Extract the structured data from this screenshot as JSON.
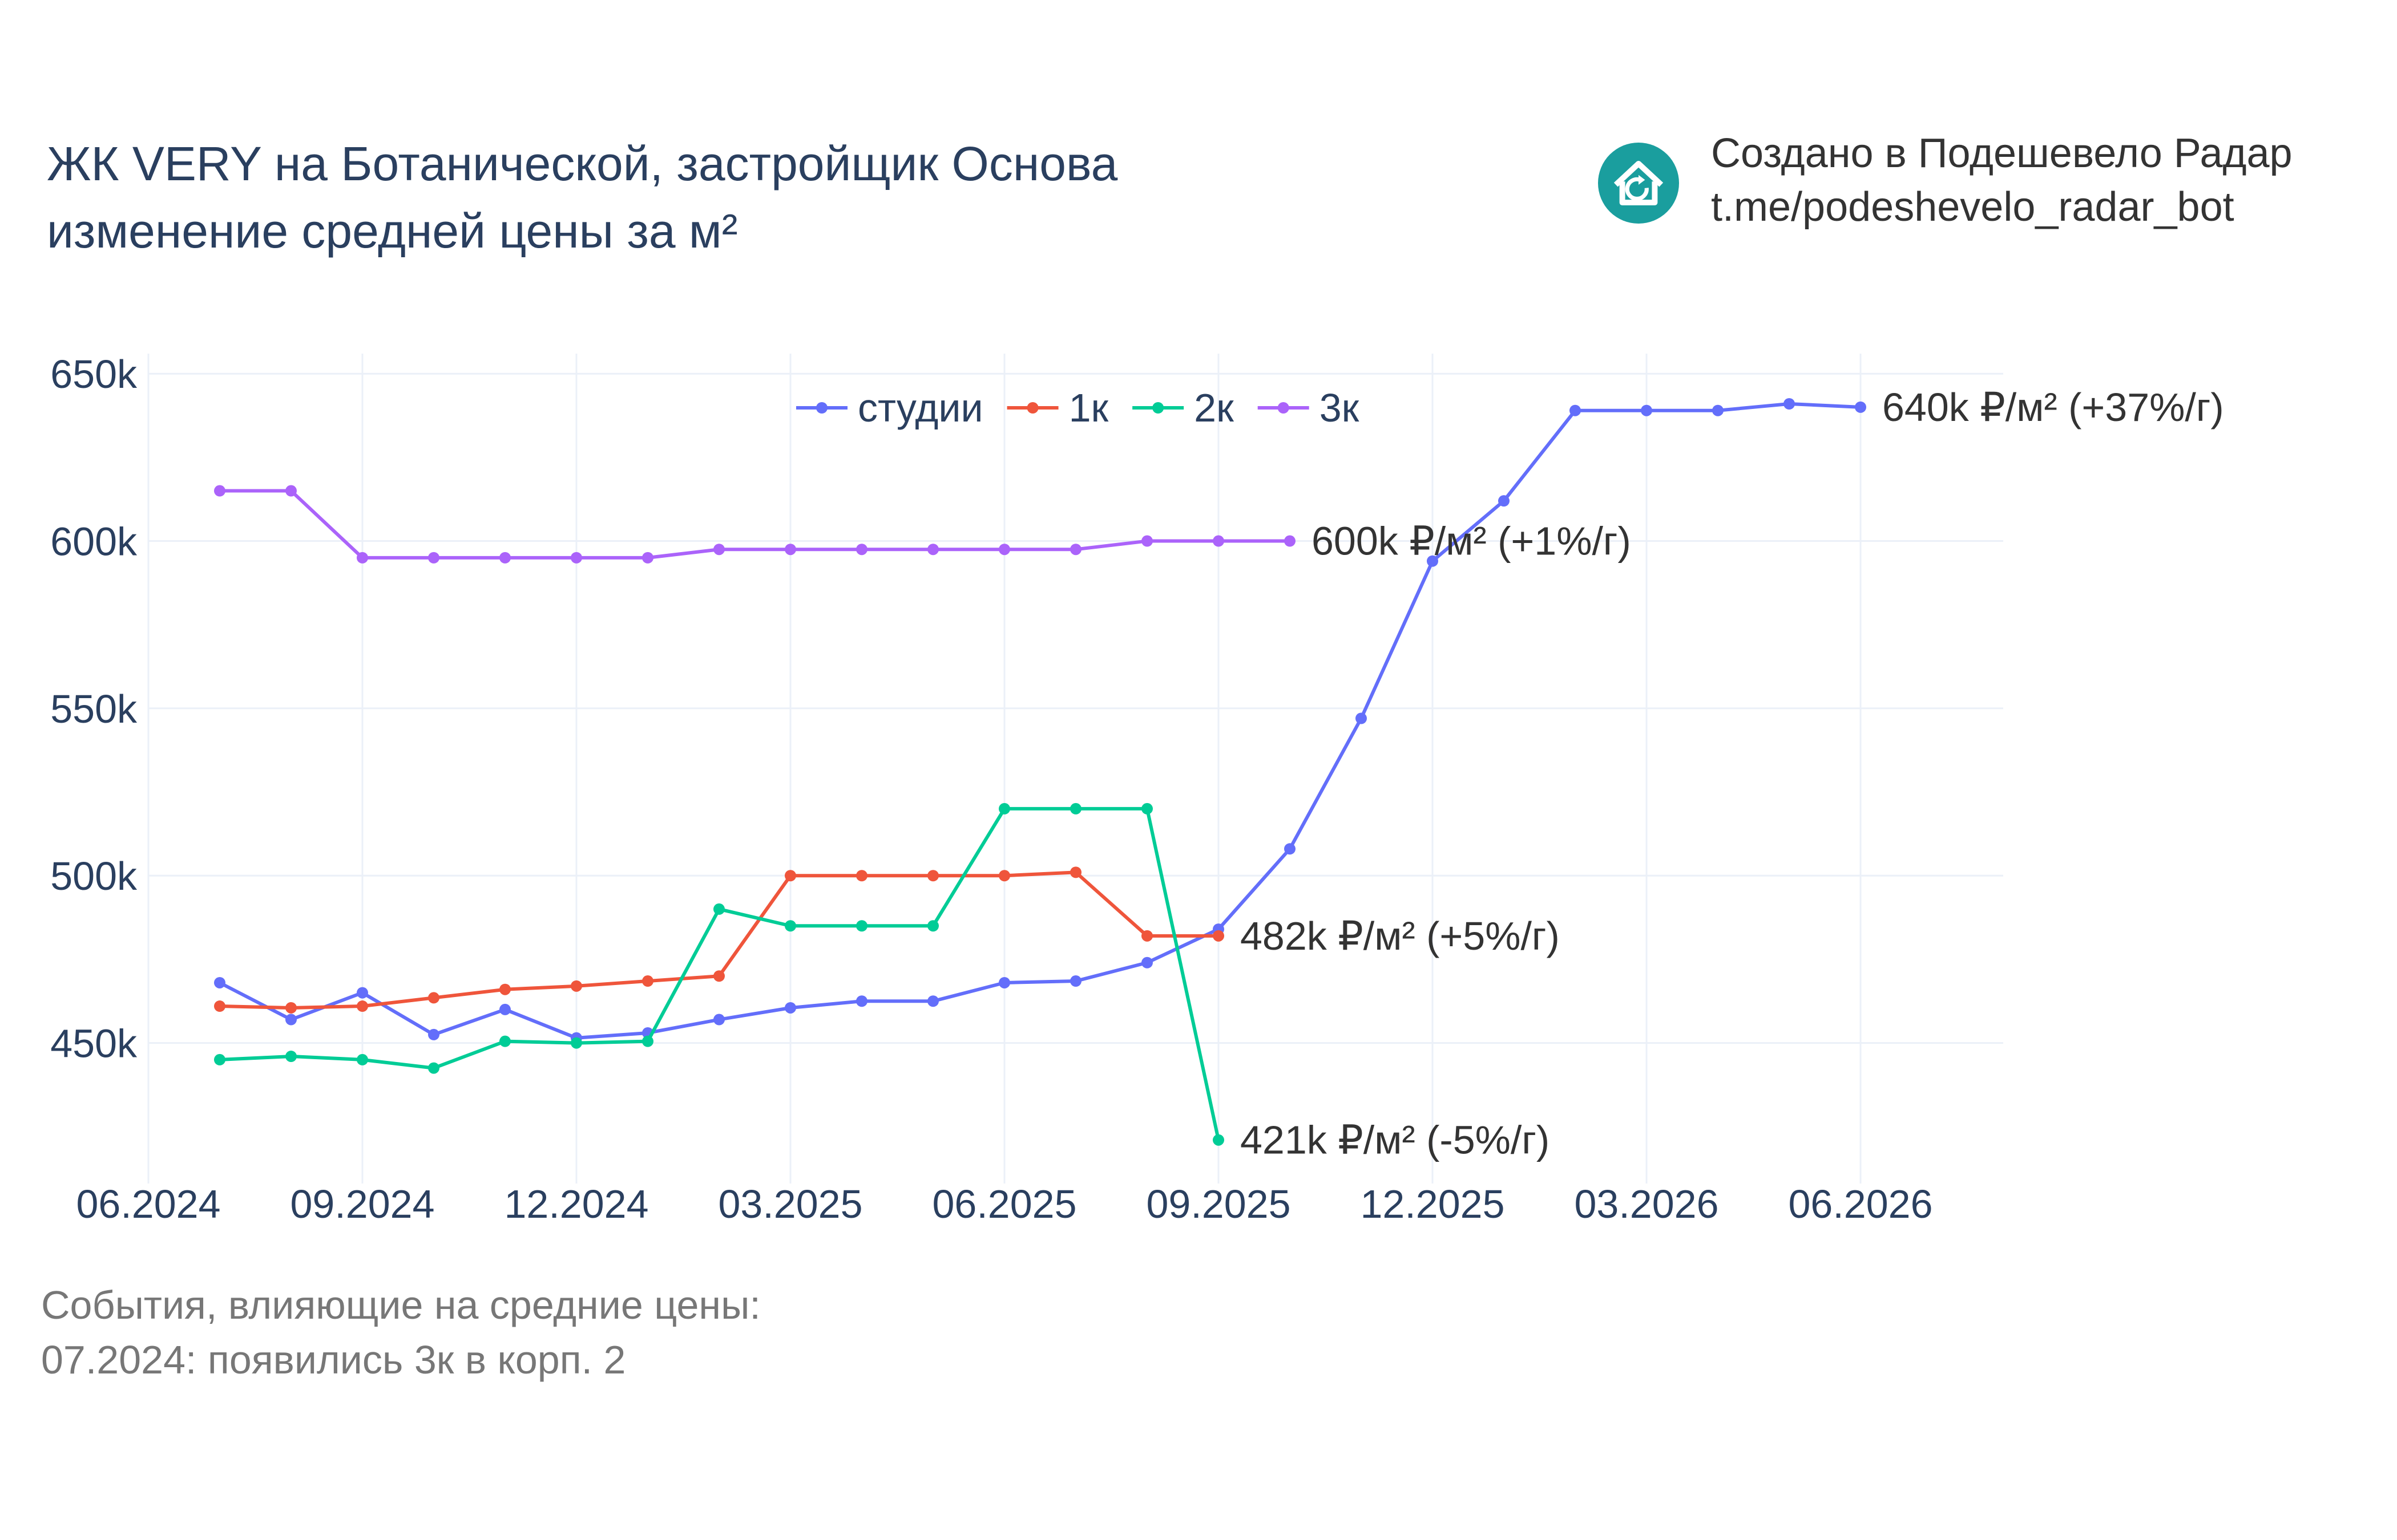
{
  "title": {
    "line1": "ЖК VERY на Ботанической, застройщик Основа",
    "line2": "изменение средней цены за м²"
  },
  "credit": {
    "line1": "Создано в Подешевело Радар",
    "line2": "t.me/podeshevelo_radar_bot",
    "logo_icon": "house-refresh-icon",
    "logo_color": "#1a9e9e"
  },
  "events": {
    "heading": "События, влияющие на средние цены:",
    "items": [
      "07.2024: появились 3к в корп. 2"
    ]
  },
  "chart_data": {
    "type": "line",
    "x_tick_labels": [
      "06.2024",
      "09.2024",
      "12.2024",
      "03.2025",
      "06.2025",
      "09.2025",
      "12.2025",
      "03.2026",
      "06.2026"
    ],
    "y_tick_labels": [
      "450k",
      "500k",
      "550k",
      "600k",
      "650k"
    ],
    "y_ticks": [
      450000,
      500000,
      550000,
      600000,
      650000
    ],
    "x_range": [
      "2024-06",
      "2026-08"
    ],
    "ylim": [
      408000,
      656000
    ],
    "grid": true,
    "legend_position": "top-center",
    "series": [
      {
        "name": "студии",
        "color": "#636efa",
        "points": [
          [
            "2024-07",
            468000
          ],
          [
            "2024-08",
            457000
          ],
          [
            "2024-09",
            465000
          ],
          [
            "2024-10",
            452500
          ],
          [
            "2024-11",
            460000
          ],
          [
            "2024-12",
            451500
          ],
          [
            "2025-01",
            453000
          ],
          [
            "2025-02",
            457000
          ],
          [
            "2025-03",
            460500
          ],
          [
            "2025-04",
            462500
          ],
          [
            "2025-05",
            462500
          ],
          [
            "2025-06",
            468000
          ],
          [
            "2025-07",
            468500
          ],
          [
            "2025-08",
            474000
          ],
          [
            "2025-09",
            484000
          ],
          [
            "2025-10",
            508000
          ],
          [
            "2025-11",
            547000
          ],
          [
            "2025-12",
            594000
          ],
          [
            "2026-01",
            612000
          ],
          [
            "2026-02",
            639000
          ],
          [
            "2026-03",
            639000
          ],
          [
            "2026-04",
            639000
          ],
          [
            "2026-05",
            641000
          ],
          [
            "2026-06",
            640000
          ]
        ],
        "end_label": "640k ₽/м² (+37%/г)"
      },
      {
        "name": "1к",
        "color": "#ef553b",
        "points": [
          [
            "2024-07",
            461000
          ],
          [
            "2024-08",
            460500
          ],
          [
            "2024-09",
            461000
          ],
          [
            "2024-10",
            463500
          ],
          [
            "2024-11",
            466000
          ],
          [
            "2024-12",
            467000
          ],
          [
            "2025-01",
            468500
          ],
          [
            "2025-02",
            470000
          ],
          [
            "2025-03",
            500000
          ],
          [
            "2025-04",
            500000
          ],
          [
            "2025-05",
            500000
          ],
          [
            "2025-06",
            500000
          ],
          [
            "2025-07",
            501000
          ],
          [
            "2025-08",
            482000
          ],
          [
            "2025-09",
            482000
          ]
        ],
        "end_label": "482k ₽/м² (+5%/г)"
      },
      {
        "name": "2к",
        "color": "#00cc96",
        "points": [
          [
            "2024-07",
            445000
          ],
          [
            "2024-08",
            446000
          ],
          [
            "2024-09",
            445000
          ],
          [
            "2024-10",
            442500
          ],
          [
            "2024-11",
            450500
          ],
          [
            "2024-12",
            450000
          ],
          [
            "2025-01",
            450500
          ],
          [
            "2025-02",
            490000
          ],
          [
            "2025-03",
            485000
          ],
          [
            "2025-04",
            485000
          ],
          [
            "2025-05",
            485000
          ],
          [
            "2025-06",
            520000
          ],
          [
            "2025-07",
            520000
          ],
          [
            "2025-08",
            520000
          ],
          [
            "2025-09",
            421000
          ]
        ],
        "end_label": "421k ₽/м² (-5%/г)"
      },
      {
        "name": "3к",
        "color": "#ab63fa",
        "points": [
          [
            "2024-07",
            615000
          ],
          [
            "2024-08",
            615000
          ],
          [
            "2024-09",
            595000
          ],
          [
            "2024-10",
            595000
          ],
          [
            "2024-11",
            595000
          ],
          [
            "2024-12",
            595000
          ],
          [
            "2025-01",
            595000
          ],
          [
            "2025-02",
            597500
          ],
          [
            "2025-03",
            597500
          ],
          [
            "2025-04",
            597500
          ],
          [
            "2025-05",
            597500
          ],
          [
            "2025-06",
            597500
          ],
          [
            "2025-07",
            597500
          ],
          [
            "2025-08",
            600000
          ],
          [
            "2025-09",
            600000
          ],
          [
            "2025-10",
            600000
          ]
        ],
        "end_label": "600k ₽/м² (+1%/г)"
      }
    ]
  }
}
